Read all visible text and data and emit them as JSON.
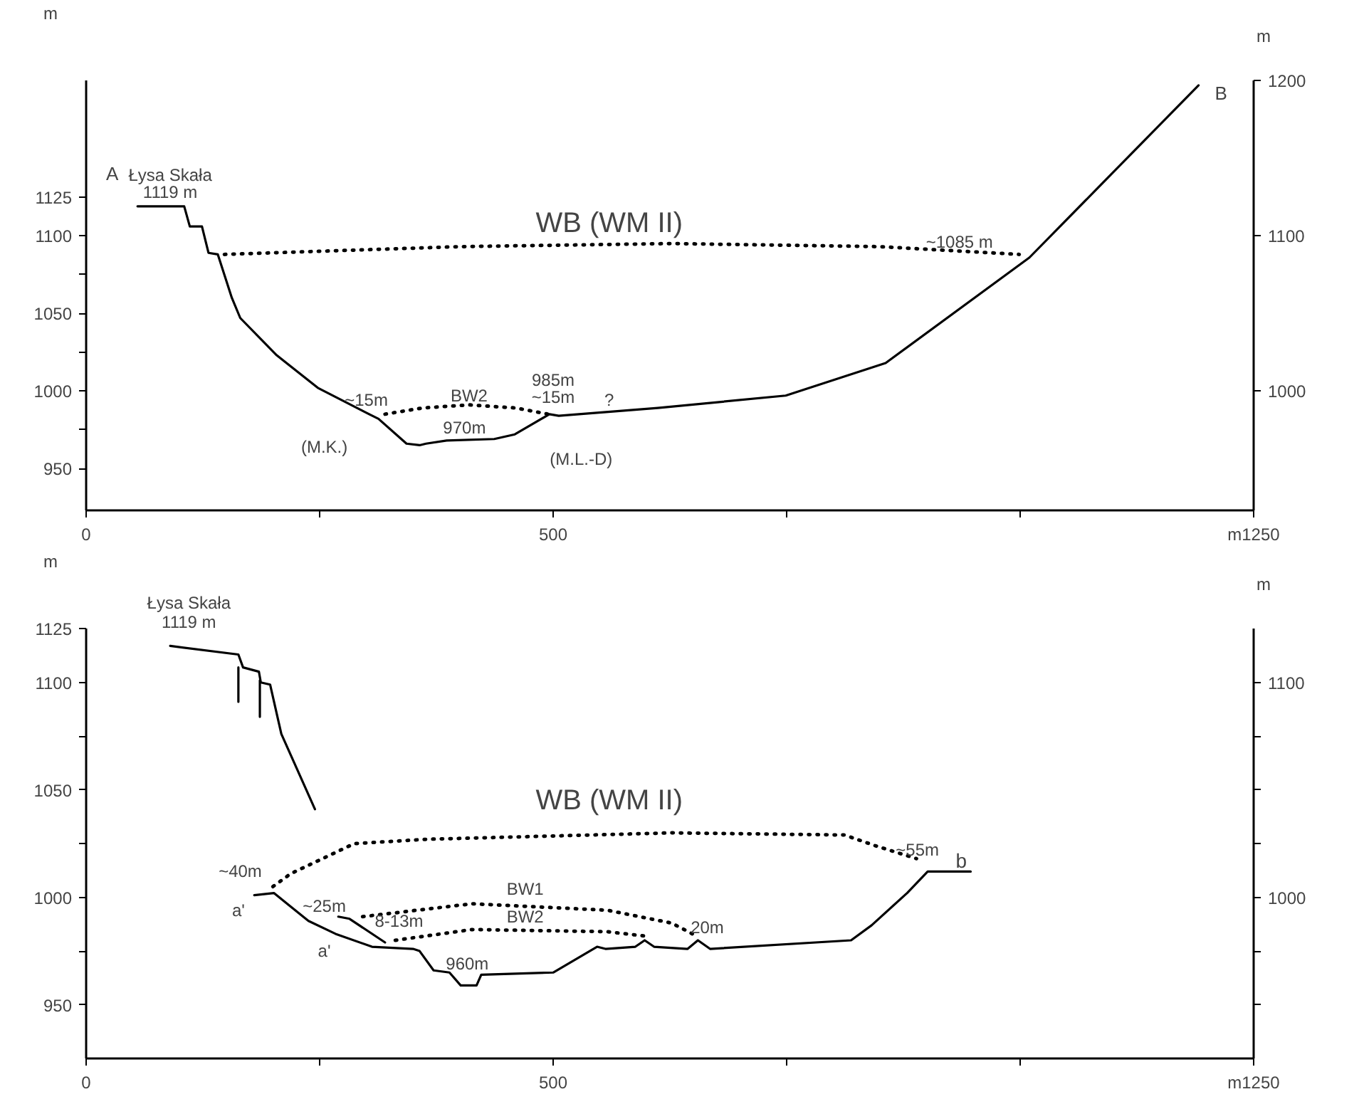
{
  "chart_data": [
    {
      "type": "line",
      "ylabel": "m",
      "y2label": "m",
      "xlim": [
        0,
        1250
      ],
      "ylim": [
        923,
        1200
      ],
      "y2lim": [
        923,
        1200
      ],
      "xticks": [
        {
          "value": 0,
          "label": "0"
        },
        {
          "value": 250,
          "label": null
        },
        500,
        {
          "value": 750,
          "label": null
        },
        {
          "value": 1000,
          "label": null
        },
        {
          "value": 1250,
          "label": "m1250"
        }
      ],
      "yticks": [
        950,
        {
          "value": 975,
          "label": null
        },
        1000,
        {
          "value": 1025,
          "label": null
        },
        1050,
        {
          "value": 1075,
          "label": null
        },
        1100,
        1125
      ],
      "y2ticks": [
        1000,
        1100,
        1200
      ],
      "grid": false,
      "series": [
        {
          "color": "#000000",
          "line_style": "solid",
          "x": [
            55,
            105,
            111,
            124,
            131,
            141,
            156,
            165,
            204,
            248,
            303,
            313,
            343,
            357,
            364,
            386,
            437,
            459,
            496,
            506,
            612,
            749,
            856,
            1010,
            1191
          ],
          "values": [
            1119,
            1119,
            1106,
            1106,
            1089,
            1088,
            1060,
            1047,
            1023,
            1002,
            985,
            982,
            966,
            965,
            966,
            968,
            969,
            972,
            985,
            984,
            989,
            997,
            1018,
            1086,
            1197
          ]
        },
        {
          "color": "#000000",
          "line_style": "dotted",
          "x": [
            148,
            400,
            627,
            850,
            999
          ],
          "values": [
            1088,
            1093,
            1095,
            1093,
            1088
          ]
        },
        {
          "color": "#000000",
          "line_style": "dotted",
          "x": [
            320,
            360,
            410,
            460,
            495
          ],
          "values": [
            985,
            989,
            991,
            989,
            985
          ]
        }
      ],
      "annotations": [
        "A",
        "Łysa Skała",
        "1119 m",
        "WB (WM II)",
        "~1085 m",
        "~15m",
        "BW2",
        "985m",
        "~15m",
        "?",
        "(M.K.)",
        "970m",
        "(M.L.-D)",
        "B"
      ]
    },
    {
      "type": "line",
      "ylabel": "m",
      "y2label": "m",
      "xlim": [
        0,
        1250
      ],
      "ylim": [
        925,
        1125
      ],
      "y2lim": [
        925,
        1125
      ],
      "xticks": [
        {
          "value": 0,
          "label": "0"
        },
        {
          "value": 250,
          "label": null
        },
        500,
        {
          "value": 750,
          "label": null
        },
        {
          "value": 1000,
          "label": null
        },
        {
          "value": 1250,
          "label": "m1250"
        }
      ],
      "yticks": [
        950,
        {
          "value": 975,
          "label": null
        },
        1000,
        {
          "value": 1025,
          "label": null
        },
        1050,
        {
          "value": 1075,
          "label": null
        },
        1100,
        1125
      ],
      "y2ticks": [
        {
          "value": 950,
          "label": null
        },
        {
          "value": 975,
          "label": null
        },
        1000,
        {
          "value": 1025,
          "label": null
        },
        {
          "value": 1050,
          "label": null
        },
        {
          "value": 1075,
          "label": null
        },
        1100
      ],
      "grid": false,
      "series": [
        {
          "color": "#000000",
          "line_style": "solid",
          "x": [
            90,
            163,
            168,
            185,
            187,
            197,
            209,
            245
          ],
          "values": [
            1117,
            1113,
            1107,
            1105,
            1100,
            1099,
            1076,
            1041
          ]
        },
        {
          "color": "#000000",
          "line_style": "solid",
          "x": [
            163,
            163
          ],
          "values": [
            1107,
            1091
          ]
        },
        {
          "color": "#000000",
          "line_style": "solid",
          "x": [
            186,
            186
          ],
          "values": [
            1101,
            1084
          ]
        },
        {
          "color": "#000000",
          "line_style": "solid",
          "x": [
            180,
            201,
            238,
            267,
            306,
            350,
            357,
            372,
            389,
            401,
            418,
            423,
            500,
            547,
            556,
            588,
            598,
            608,
            644,
            655,
            668,
            819,
            841,
            879,
            901,
            947
          ],
          "values": [
            1001,
            1002,
            989,
            983,
            977,
            976,
            975,
            966,
            965,
            959,
            959,
            964,
            965,
            977,
            976,
            977,
            980,
            977,
            976,
            980,
            976,
            980,
            987,
            1002,
            1012,
            1012
          ]
        },
        {
          "color": "#000000",
          "line_style": "solid",
          "x": [
            270,
            282,
            320
          ],
          "values": [
            991,
            990,
            979
          ]
        },
        {
          "color": "#000000",
          "line_style": "dotted",
          "x": [
            200,
            219,
            287,
            364,
            627,
            812,
            845,
            889
          ],
          "values": [
            1005,
            1011,
            1025,
            1027,
            1030,
            1029,
            1024,
            1018
          ]
        },
        {
          "color": "#000000",
          "line_style": "dotted",
          "x": [
            296,
            413,
            558,
            627,
            649
          ],
          "values": [
            991,
            997,
            994,
            988,
            983
          ]
        },
        {
          "color": "#000000",
          "line_style": "dotted",
          "x": [
            331,
            413,
            558,
            598
          ],
          "values": [
            980,
            985,
            984,
            982
          ]
        }
      ],
      "annotations": [
        "Łysa Skała",
        "1119 m",
        "WB (WM II)",
        "~40m",
        "a'",
        "~25m",
        "a'",
        "8-13m",
        "BW1",
        "BW2",
        "960m",
        "20m",
        "~55m",
        "b"
      ]
    }
  ]
}
